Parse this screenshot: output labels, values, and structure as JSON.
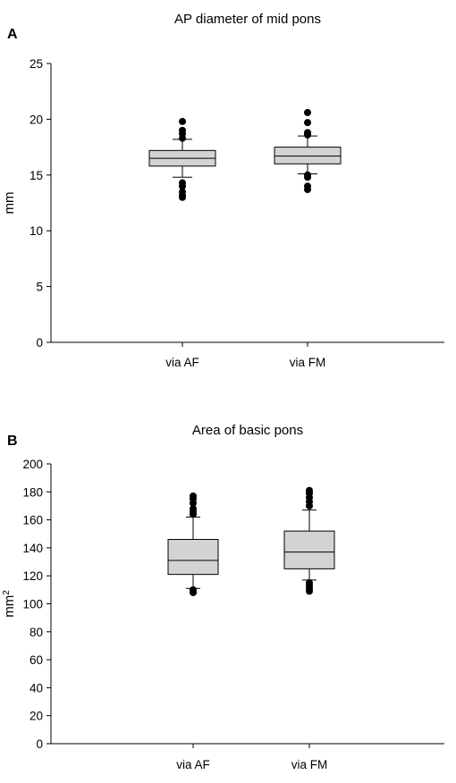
{
  "chart_data": [
    {
      "type": "box",
      "panel_label": "A",
      "title": "AP diameter of mid pons",
      "xlabel": "",
      "ylabel": "mm",
      "ylabel_sup": "",
      "ylim": [
        0,
        25
      ],
      "yticks": [
        0,
        5,
        10,
        15,
        20,
        25
      ],
      "categories": [
        "via AF",
        "via FM"
      ],
      "box_color": "#d3d3d3",
      "grid": false,
      "boxes": [
        {
          "q1": 15.8,
          "median": 16.5,
          "q3": 17.2,
          "whisker_low": 14.8,
          "whisker_high": 18.2,
          "outliers": [
            13.0,
            13.2,
            13.5,
            14.0,
            14.3,
            18.3,
            18.7,
            19.0,
            19.8
          ]
        },
        {
          "q1": 16.0,
          "median": 16.7,
          "q3": 17.5,
          "whisker_low": 15.1,
          "whisker_high": 18.5,
          "outliers": [
            13.7,
            14.0,
            14.8,
            15.0,
            18.6,
            18.8,
            19.7,
            20.6
          ]
        }
      ]
    },
    {
      "type": "box",
      "panel_label": "B",
      "title": "Area of basic pons",
      "xlabel": "",
      "ylabel": "mm",
      "ylabel_sup": "2",
      "ylim": [
        0,
        200
      ],
      "yticks": [
        0,
        20,
        40,
        60,
        80,
        100,
        120,
        140,
        160,
        180,
        200
      ],
      "categories": [
        "via AF",
        "via FM"
      ],
      "box_color": "#d3d3d3",
      "grid": false,
      "boxes": [
        {
          "q1": 121,
          "median": 131,
          "q3": 146,
          "whisker_low": 111,
          "whisker_high": 162,
          "outliers": [
            108,
            110,
            164,
            166,
            168,
            172,
            175,
            177
          ]
        },
        {
          "q1": 125,
          "median": 137,
          "q3": 152,
          "whisker_low": 117,
          "whisker_high": 167,
          "outliers": [
            109,
            111,
            113,
            115,
            170,
            173,
            176,
            179,
            181
          ]
        }
      ]
    }
  ]
}
